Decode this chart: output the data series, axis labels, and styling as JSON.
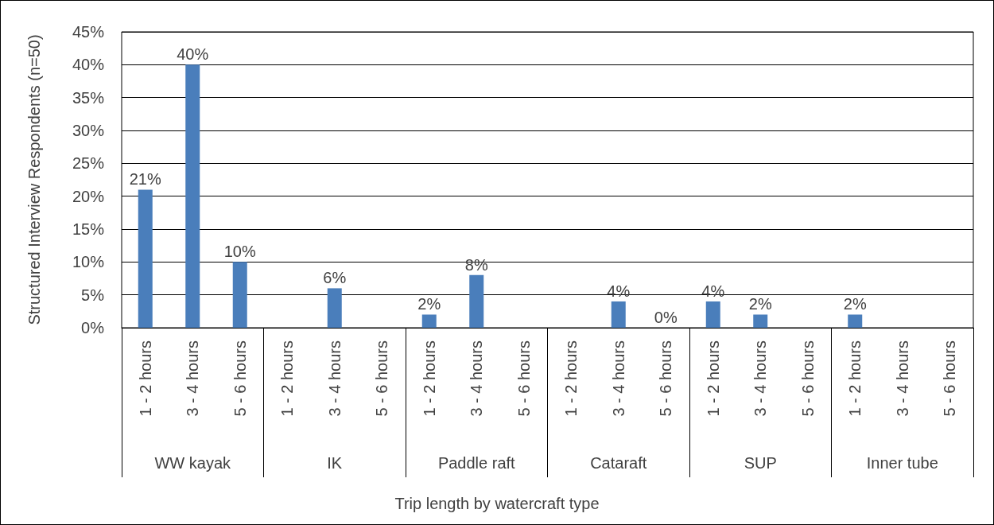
{
  "chart_data": {
    "type": "bar",
    "ylabel": "Structured Interview Respondents (n=50)",
    "xlabel": "Trip length by watercraft type",
    "categories": [
      "1 - 2 hours",
      "3 - 4 hours",
      "5 - 6 hours",
      "1 - 2 hours",
      "3 - 4 hours",
      "5 - 6 hours",
      "1 - 2 hours",
      "3 - 4 hours",
      "5 - 6 hours",
      "1 - 2 hours",
      "3 - 4 hours",
      "5 - 6 hours",
      "1 - 2 hours",
      "3 - 4 hours",
      "5 - 6 hours",
      "1 - 2 hours",
      "3 - 4 hours",
      "5 - 6 hours"
    ],
    "values": [
      21,
      40,
      10,
      0,
      6,
      0,
      2,
      8,
      0,
      0,
      4,
      0,
      4,
      2,
      0,
      2,
      0,
      0
    ],
    "value_labels": [
      "21%",
      "40%",
      "10%",
      null,
      "6%",
      null,
      "2%",
      "8%",
      null,
      null,
      "4%",
      "0%",
      "4%",
      "2%",
      null,
      "2%",
      null,
      null
    ],
    "color": "#4a7ebb",
    "annotations": [
      "WW kayak",
      "IK",
      "Paddle raft",
      "Cataraft",
      "SUP",
      "Inner tube"
    ],
    "ylim": [
      0,
      45
    ],
    "yticks": [
      {
        "value": 0,
        "label": "0%"
      },
      {
        "value": 5,
        "label": "5%"
      },
      {
        "value": 10,
        "label": "10%"
      },
      {
        "value": 15,
        "label": "15%"
      },
      {
        "value": 20,
        "label": "20%"
      },
      {
        "value": 25,
        "label": "25%"
      },
      {
        "value": 30,
        "label": "30%"
      },
      {
        "value": 35,
        "label": "35%"
      },
      {
        "value": 40,
        "label": "40%"
      },
      {
        "value": 45,
        "label": "45%"
      }
    ],
    "grid": "y"
  }
}
